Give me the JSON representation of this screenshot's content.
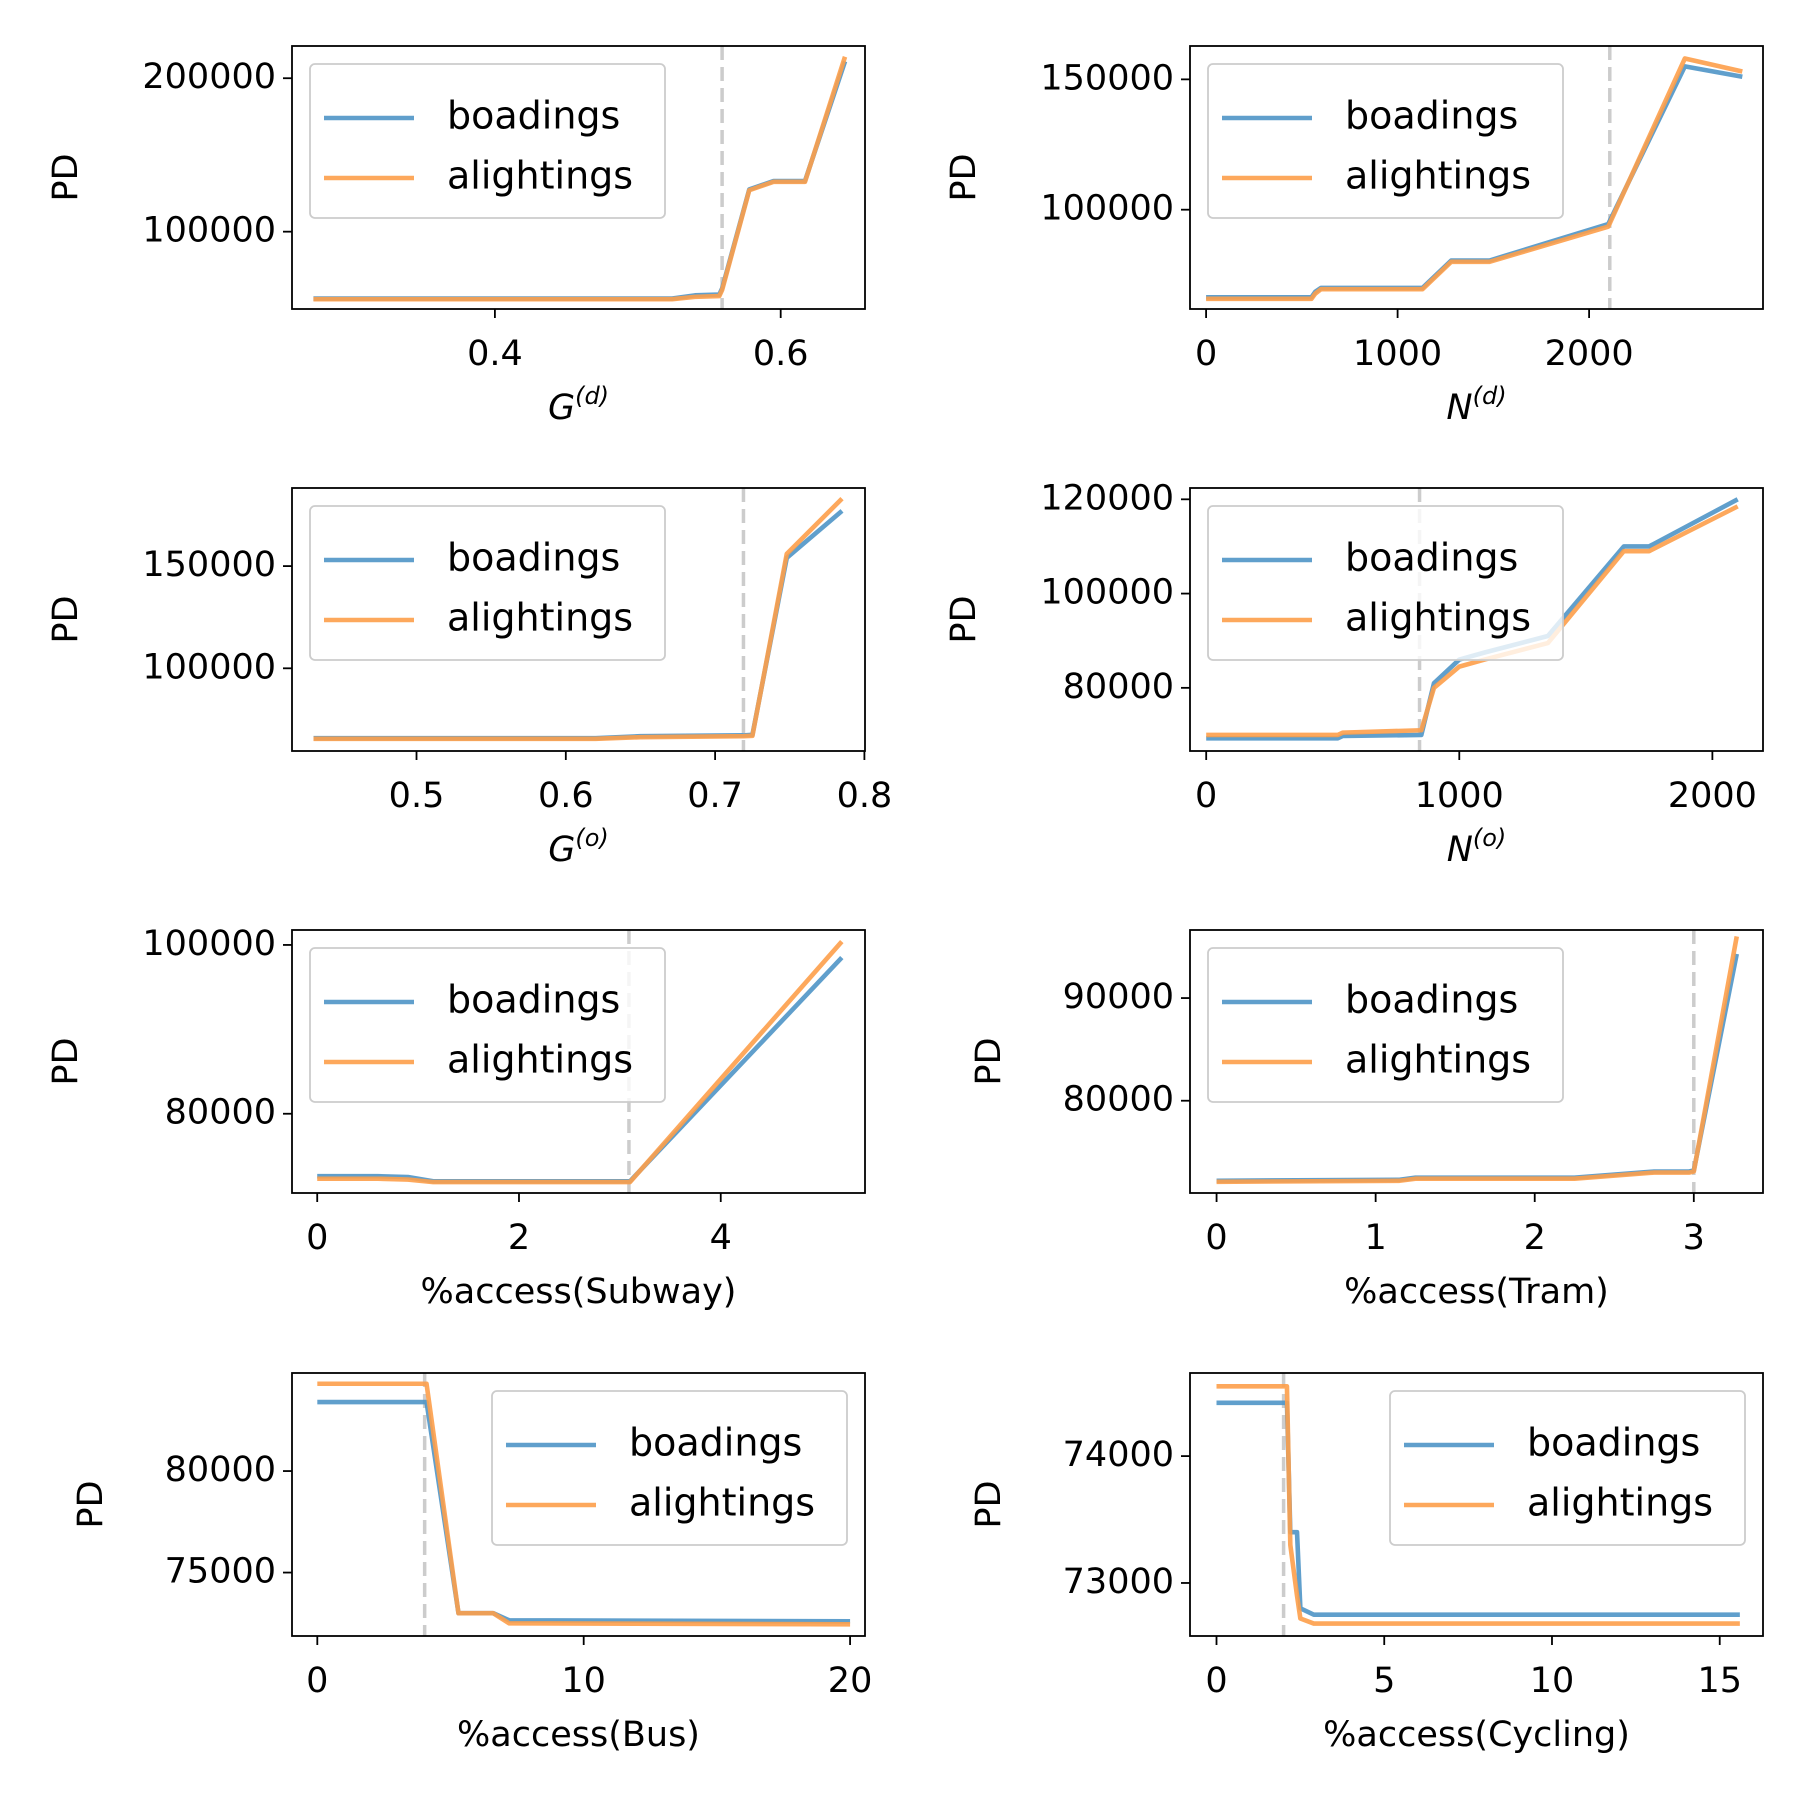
{
  "chart_data": [
    {
      "type": "line",
      "xlabel": "G",
      "xlabel_sup": "(d)",
      "ylabel": "PD",
      "legend": "upper left",
      "vline": 0.559,
      "vline_color": "#cccccc",
      "xlim": [
        0.258,
        0.659
      ],
      "ylim": [
        49600,
        221000
      ],
      "xticks": [
        0.4,
        0.6
      ],
      "yticks": [
        100000,
        200000
      ],
      "x": [
        0.273,
        0.3,
        0.35,
        0.4,
        0.45,
        0.5,
        0.524,
        0.54,
        0.557,
        0.559,
        0.578,
        0.595,
        0.617,
        0.645
      ],
      "series": [
        {
          "name": "boadings",
          "color": "#4f95c7",
          "values": [
            56400,
            56400,
            56400,
            56400,
            56400,
            56400,
            56400,
            58500,
            59000,
            63000,
            127500,
            133000,
            133000,
            211000
          ]
        },
        {
          "name": "alightings",
          "color": "#fd9f4a",
          "values": [
            56000,
            56000,
            56000,
            56000,
            56000,
            56000,
            56000,
            57500,
            58000,
            62000,
            127000,
            132500,
            132500,
            214000
          ]
        }
      ]
    },
    {
      "type": "line",
      "xlabel": "N",
      "xlabel_sup": "(d)",
      "ylabel": "PD",
      "legend": "upper left",
      "vline": 2108,
      "vline_color": "#cccccc",
      "xlim": [
        -84,
        2908
      ],
      "ylim": [
        61900,
        162800
      ],
      "xticks": [
        0,
        1000,
        2000
      ],
      "yticks": [
        100000,
        150000
      ],
      "x": [
        0,
        550,
        570,
        600,
        1130,
        1280,
        1480,
        2100,
        2500,
        2800
      ],
      "series": [
        {
          "name": "boadings",
          "color": "#4f95c7",
          "values": [
            66400,
            66400,
            68500,
            70000,
            70000,
            80500,
            80500,
            94500,
            155000,
            151000
          ]
        },
        {
          "name": "alightings",
          "color": "#fd9f4a",
          "values": [
            65800,
            65800,
            67800,
            69500,
            69500,
            80000,
            80000,
            93500,
            158000,
            153000
          ]
        }
      ]
    },
    {
      "type": "line",
      "xlabel": "G",
      "xlabel_sup": "(o)",
      "ylabel": "PD",
      "legend": "upper left",
      "vline": 0.719,
      "vline_color": "#cccccc",
      "xlim": [
        0.4166,
        0.8004
      ],
      "ylim": [
        59550,
        188200
      ],
      "xticks": [
        0.5,
        0.6,
        0.7,
        0.8
      ],
      "yticks": [
        100000,
        150000
      ],
      "x": [
        0.431,
        0.5,
        0.62,
        0.65,
        0.719,
        0.725,
        0.748,
        0.785
      ],
      "series": [
        {
          "name": "boadings",
          "color": "#4f95c7",
          "values": [
            65800,
            65800,
            65800,
            66800,
            67200,
            67500,
            154000,
            177000
          ]
        },
        {
          "name": "alightings",
          "color": "#fd9f4a",
          "values": [
            65500,
            65500,
            65500,
            66300,
            66800,
            67000,
            156000,
            183000
          ]
        }
      ]
    },
    {
      "type": "line",
      "xlabel": "N",
      "xlabel_sup": "(o)",
      "ylabel": "PD",
      "legend": "upper left",
      "vline": 843,
      "vline_color": "#cccccc",
      "xlim": [
        -64,
        2200
      ],
      "ylim": [
        66600,
        122400
      ],
      "xticks": [
        0,
        1000,
        2000
      ],
      "yticks": [
        80000,
        100000,
        120000
      ],
      "x": [
        0,
        520,
        540,
        850,
        900,
        1000,
        1100,
        1350,
        1650,
        1750,
        2100
      ],
      "series": [
        {
          "name": "boadings",
          "color": "#4f95c7",
          "values": [
            69300,
            69300,
            69800,
            70000,
            81000,
            86000,
            87500,
            91000,
            110000,
            110000,
            120000
          ]
        },
        {
          "name": "alightings",
          "color": "#fd9f4a",
          "values": [
            70000,
            70000,
            70500,
            71000,
            80000,
            84500,
            86000,
            89500,
            109000,
            109000,
            118500
          ]
        }
      ]
    },
    {
      "type": "line",
      "xlabel": "%access(Subway)",
      "ylabel": "PD",
      "legend": "upper left",
      "vline": 3.09,
      "vline_color": "#cccccc",
      "xlim": [
        -0.25,
        5.43
      ],
      "ylim": [
        70610,
        101770
      ],
      "xticks": [
        0,
        2,
        4
      ],
      "yticks": [
        80000,
        100000
      ],
      "x": [
        0,
        0.6,
        0.9,
        1.15,
        3.1,
        5.2
      ],
      "series": [
        {
          "name": "boadings",
          "color": "#4f95c7",
          "values": [
            72600,
            72600,
            72500,
            72000,
            72000,
            98500
          ]
        },
        {
          "name": "alightings",
          "color": "#fd9f4a",
          "values": [
            72300,
            72300,
            72200,
            71900,
            71900,
            100400
          ]
        }
      ]
    },
    {
      "type": "line",
      "xlabel": "%access(Tram)",
      "ylabel": "PD",
      "legend": "upper left",
      "vline": 3.0,
      "vline_color": "#cccccc",
      "xlim": [
        -0.167,
        3.435
      ],
      "ylim": [
        71010,
        96630
      ],
      "xticks": [
        0,
        1,
        2,
        3
      ],
      "yticks": [
        80000,
        90000
      ],
      "x": [
        0,
        1.15,
        1.25,
        2.25,
        2.75,
        2.97,
        3.0,
        3.27
      ],
      "series": [
        {
          "name": "boadings",
          "color": "#4f95c7",
          "values": [
            72200,
            72300,
            72500,
            72500,
            73100,
            73100,
            73200,
            94300
          ]
        },
        {
          "name": "alightings",
          "color": "#fd9f4a",
          "values": [
            72100,
            72200,
            72400,
            72400,
            73000,
            73000,
            73100,
            96000
          ]
        }
      ]
    },
    {
      "type": "line",
      "xlabel": "%access(Bus)",
      "ylabel": "PD",
      "legend": "upper right",
      "vline": 4.03,
      "vline_color": "#cccccc",
      "xlim": [
        -0.95,
        20.56
      ],
      "ylim": [
        71875,
        84830
      ],
      "xticks": [
        0,
        10,
        20
      ],
      "yticks": [
        75000,
        80000
      ],
      "x": [
        0,
        4.1,
        5.3,
        6.6,
        7.2,
        20
      ],
      "series": [
        {
          "name": "boadings",
          "color": "#4f95c7",
          "values": [
            83400,
            83400,
            73000,
            73000,
            72650,
            72600
          ]
        },
        {
          "name": "alightings",
          "color": "#fd9f4a",
          "values": [
            84300,
            84300,
            73000,
            73000,
            72500,
            72450
          ]
        }
      ]
    },
    {
      "type": "line",
      "xlabel": "%access(Cycling)",
      "ylabel": "PD",
      "legend": "upper right",
      "vline": 2.0,
      "vline_color": "#cccccc",
      "xlim": [
        -0.79,
        16.29
      ],
      "ylim": [
        72582,
        74655
      ],
      "xticks": [
        0,
        5,
        10,
        15
      ],
      "yticks": [
        73000,
        74000
      ],
      "x": [
        0,
        2.1,
        2.2,
        2.4,
        2.5,
        2.9,
        15.6
      ],
      "series": [
        {
          "name": "boadings",
          "color": "#4f95c7",
          "values": [
            74420,
            74420,
            73400,
            73400,
            72800,
            72750,
            72750
          ]
        },
        {
          "name": "alightings",
          "color": "#fd9f4a",
          "values": [
            74550,
            74550,
            73300,
            72900,
            72720,
            72680,
            72680
          ]
        }
      ]
    }
  ]
}
